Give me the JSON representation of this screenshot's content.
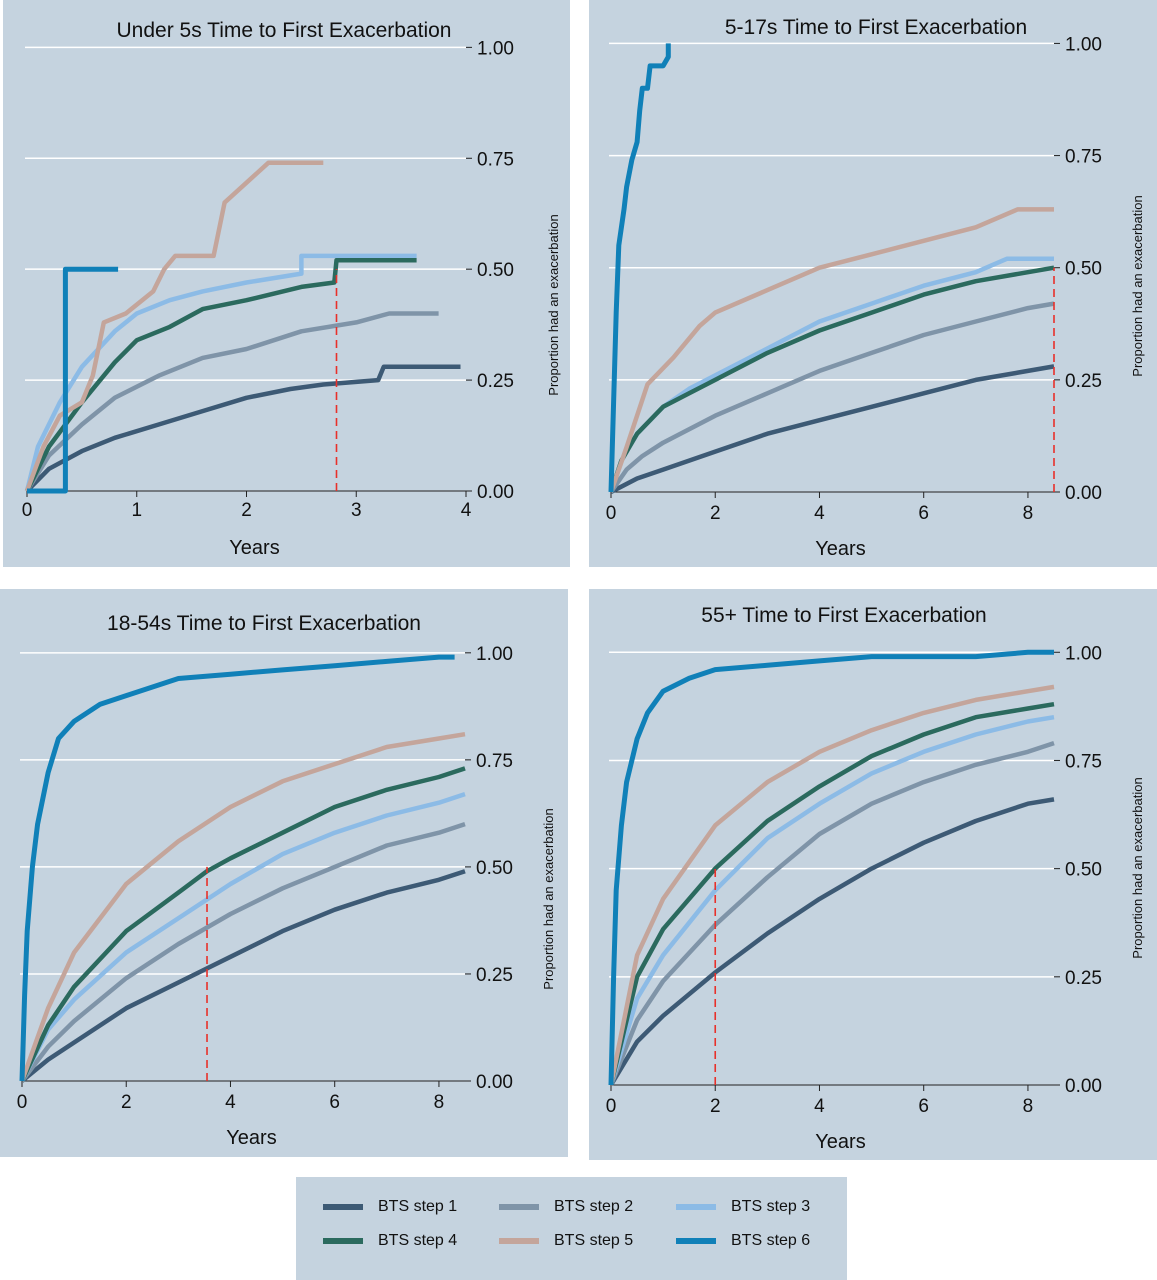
{
  "chart_data": [
    {
      "type": "line",
      "title": "Under 5s Time to First Exacerbation",
      "xlabel": "Years",
      "ylabel": "Proportion had an exacerbation",
      "xlim": [
        0,
        4
      ],
      "ylim": [
        0,
        1.1
      ],
      "xticks": [
        0,
        1,
        2,
        3,
        4
      ],
      "yticks": [
        0,
        0.25,
        0.5,
        0.75,
        1.0
      ],
      "ytick_labels": [
        "0.00",
        "0.25",
        "0.50",
        "0.75",
        "1.00"
      ],
      "grid": "horizontal",
      "median_line": {
        "x": 2.82,
        "y": 0.5
      },
      "series": [
        {
          "name": "BTS step 1",
          "x": [
            0,
            0.2,
            0.5,
            0.8,
            1.2,
            1.6,
            2.0,
            2.4,
            2.7,
            3.2,
            3.25,
            3.95
          ],
          "y": [
            0,
            0.05,
            0.09,
            0.12,
            0.15,
            0.18,
            0.21,
            0.23,
            0.24,
            0.25,
            0.28,
            0.28
          ]
        },
        {
          "name": "BTS step 2",
          "x": [
            0,
            0.2,
            0.5,
            0.8,
            1.2,
            1.6,
            2.0,
            2.5,
            3.0,
            3.3,
            3.75
          ],
          "y": [
            0,
            0.08,
            0.15,
            0.21,
            0.26,
            0.3,
            0.32,
            0.36,
            0.38,
            0.4,
            0.4
          ]
        },
        {
          "name": "BTS step 3",
          "x": [
            0,
            0.1,
            0.3,
            0.5,
            0.8,
            1.0,
            1.3,
            1.6,
            2.0,
            2.5,
            2.5,
            3.55
          ],
          "y": [
            0,
            0.1,
            0.2,
            0.28,
            0.36,
            0.4,
            0.43,
            0.45,
            0.47,
            0.49,
            0.53,
            0.53
          ]
        },
        {
          "name": "BTS step 4",
          "x": [
            0,
            0.2,
            0.5,
            0.8,
            1.0,
            1.3,
            1.6,
            2.0,
            2.5,
            2.8,
            2.82,
            3.55
          ],
          "y": [
            0,
            0.1,
            0.2,
            0.29,
            0.34,
            0.37,
            0.41,
            0.43,
            0.46,
            0.47,
            0.52,
            0.52
          ]
        },
        {
          "name": "BTS step 5",
          "x": [
            0,
            0.15,
            0.3,
            0.5,
            0.6,
            0.7,
            0.9,
            1.15,
            1.25,
            1.35,
            1.7,
            1.8,
            2.2,
            2.7
          ],
          "y": [
            0,
            0.1,
            0.17,
            0.2,
            0.26,
            0.38,
            0.4,
            0.45,
            0.5,
            0.53,
            0.53,
            0.65,
            0.74,
            0.74
          ]
        },
        {
          "name": "BTS step 6",
          "x": [
            0,
            0.35,
            0.35,
            0.83
          ],
          "y": [
            0,
            0,
            0.5,
            0.5
          ]
        }
      ]
    },
    {
      "type": "line",
      "title": "5-17s Time to First Exacerbation",
      "xlabel": "Years",
      "ylabel": "Proportion had an exacerbation",
      "xlim": [
        0,
        8.5
      ],
      "ylim": [
        0,
        1.05
      ],
      "xticks": [
        0,
        2,
        4,
        6,
        8
      ],
      "yticks": [
        0,
        0.25,
        0.5,
        0.75,
        1.0
      ],
      "ytick_labels": [
        "0.00",
        "0.25",
        "0.50",
        "0.75",
        "1.00"
      ],
      "grid": "horizontal",
      "median_line": {
        "x": 8.5,
        "y": 0.5
      },
      "series": [
        {
          "name": "BTS step 1",
          "x": [
            0,
            0.5,
            1,
            2,
            3,
            4,
            5,
            6,
            7,
            8,
            8.5
          ],
          "y": [
            0,
            0.03,
            0.05,
            0.09,
            0.13,
            0.16,
            0.19,
            0.22,
            0.25,
            0.27,
            0.28
          ]
        },
        {
          "name": "BTS step 2",
          "x": [
            0,
            0.3,
            0.6,
            1,
            2,
            3,
            4,
            5,
            6,
            7,
            8,
            8.5
          ],
          "y": [
            0,
            0.05,
            0.08,
            0.11,
            0.17,
            0.22,
            0.27,
            0.31,
            0.35,
            0.38,
            0.41,
            0.42
          ]
        },
        {
          "name": "BTS step 3",
          "x": [
            0,
            0.2,
            0.5,
            1,
            1.5,
            2,
            3,
            4,
            5,
            6,
            7,
            7.6,
            8.5
          ],
          "y": [
            0,
            0.07,
            0.13,
            0.19,
            0.23,
            0.26,
            0.32,
            0.38,
            0.42,
            0.46,
            0.49,
            0.52,
            0.52
          ]
        },
        {
          "name": "BTS step 4",
          "x": [
            0,
            0.2,
            0.5,
            1,
            1.5,
            2,
            3,
            4,
            5,
            6,
            7,
            8,
            8.5
          ],
          "y": [
            0,
            0.07,
            0.13,
            0.19,
            0.22,
            0.25,
            0.31,
            0.36,
            0.4,
            0.44,
            0.47,
            0.49,
            0.5
          ]
        },
        {
          "name": "BTS step 5",
          "x": [
            0,
            0.3,
            0.7,
            1.2,
            1.7,
            2,
            3,
            4,
            5,
            6,
            7,
            7.8,
            8.5
          ],
          "y": [
            0,
            0.1,
            0.24,
            0.3,
            0.37,
            0.4,
            0.45,
            0.5,
            0.53,
            0.56,
            0.59,
            0.63,
            0.63
          ]
        },
        {
          "name": "BTS step 6",
          "x": [
            0,
            0.05,
            0.1,
            0.15,
            0.25,
            0.3,
            0.4,
            0.5,
            0.55,
            0.6,
            0.7,
            0.75,
            0.8,
            1.0,
            1.1,
            1.1
          ],
          "y": [
            0,
            0.2,
            0.4,
            0.55,
            0.63,
            0.68,
            0.74,
            0.78,
            0.85,
            0.9,
            0.9,
            0.95,
            0.95,
            0.95,
            0.97,
            1.0
          ]
        }
      ]
    },
    {
      "type": "line",
      "title": "18-54s Time to First Exacerbation",
      "xlabel": "Years",
      "ylabel": "Proportion had an exacerbation",
      "xlim": [
        0,
        8.5
      ],
      "ylim": [
        0,
        1.1
      ],
      "xticks": [
        0,
        2,
        4,
        6,
        8
      ],
      "yticks": [
        0,
        0.25,
        0.5,
        0.75,
        1.0
      ],
      "ytick_labels": [
        "0.00",
        "0.25",
        "0.50",
        "0.75",
        "1.00"
      ],
      "grid": "horizontal",
      "median_line": {
        "x": 3.55,
        "y": 0.5
      },
      "series": [
        {
          "name": "BTS step 1",
          "x": [
            0,
            0.5,
            1,
            2,
            3,
            4,
            5,
            6,
            7,
            8,
            8.5
          ],
          "y": [
            0,
            0.05,
            0.09,
            0.17,
            0.23,
            0.29,
            0.35,
            0.4,
            0.44,
            0.47,
            0.49
          ]
        },
        {
          "name": "BTS step 2",
          "x": [
            0,
            0.5,
            1,
            2,
            3,
            4,
            5,
            6,
            7,
            8,
            8.5
          ],
          "y": [
            0,
            0.08,
            0.14,
            0.24,
            0.32,
            0.39,
            0.45,
            0.5,
            0.55,
            0.58,
            0.6
          ]
        },
        {
          "name": "BTS step 3",
          "x": [
            0,
            0.5,
            1,
            2,
            3,
            4,
            5,
            6,
            7,
            8,
            8.5
          ],
          "y": [
            0,
            0.12,
            0.19,
            0.3,
            0.38,
            0.46,
            0.53,
            0.58,
            0.62,
            0.65,
            0.67
          ]
        },
        {
          "name": "BTS step 4",
          "x": [
            0,
            0.5,
            1,
            2,
            3,
            3.55,
            4,
            5,
            6,
            7,
            8,
            8.5
          ],
          "y": [
            0,
            0.13,
            0.22,
            0.35,
            0.44,
            0.49,
            0.52,
            0.58,
            0.64,
            0.68,
            0.71,
            0.73
          ]
        },
        {
          "name": "BTS step 5",
          "x": [
            0,
            0.5,
            1,
            2,
            3,
            4,
            5,
            6,
            7,
            8,
            8.5
          ],
          "y": [
            0,
            0.17,
            0.3,
            0.46,
            0.56,
            0.64,
            0.7,
            0.74,
            0.78,
            0.8,
            0.81
          ]
        },
        {
          "name": "BTS step 6",
          "x": [
            0,
            0.05,
            0.1,
            0.2,
            0.3,
            0.5,
            0.7,
            1,
            1.5,
            2,
            3,
            4,
            5,
            6,
            7,
            8,
            8.3
          ],
          "y": [
            0,
            0.2,
            0.35,
            0.5,
            0.6,
            0.72,
            0.8,
            0.84,
            0.88,
            0.9,
            0.94,
            0.95,
            0.96,
            0.97,
            0.98,
            0.99,
            0.99
          ]
        }
      ]
    },
    {
      "type": "line",
      "title": "55+ Time to First Exacerbation",
      "xlabel": "Years",
      "ylabel": "Proportion had an exacerbation",
      "xlim": [
        0,
        8.5
      ],
      "ylim": [
        0,
        1.1
      ],
      "xticks": [
        0,
        2,
        4,
        6,
        8
      ],
      "yticks": [
        0,
        0.25,
        0.5,
        0.75,
        1.0
      ],
      "ytick_labels": [
        "0.00",
        "0.25",
        "0.50",
        "0.75",
        "1.00"
      ],
      "grid": "horizontal",
      "median_line": {
        "x": 2.0,
        "y": 0.5
      },
      "series": [
        {
          "name": "BTS step 1",
          "x": [
            0,
            0.5,
            1,
            2,
            3,
            4,
            5,
            6,
            7,
            8,
            8.5
          ],
          "y": [
            0,
            0.1,
            0.16,
            0.26,
            0.35,
            0.43,
            0.5,
            0.56,
            0.61,
            0.65,
            0.66
          ]
        },
        {
          "name": "BTS step 2",
          "x": [
            0,
            0.5,
            1,
            2,
            3,
            4,
            5,
            6,
            7,
            8,
            8.5
          ],
          "y": [
            0,
            0.15,
            0.24,
            0.37,
            0.48,
            0.58,
            0.65,
            0.7,
            0.74,
            0.77,
            0.79
          ]
        },
        {
          "name": "BTS step 3",
          "x": [
            0,
            0.5,
            1,
            2,
            3,
            4,
            5,
            6,
            7,
            8,
            8.5
          ],
          "y": [
            0,
            0.2,
            0.3,
            0.45,
            0.57,
            0.65,
            0.72,
            0.77,
            0.81,
            0.84,
            0.85
          ]
        },
        {
          "name": "BTS step 4",
          "x": [
            0,
            0.5,
            1,
            2,
            3,
            4,
            5,
            6,
            7,
            8,
            8.5
          ],
          "y": [
            0,
            0.25,
            0.36,
            0.5,
            0.61,
            0.69,
            0.76,
            0.81,
            0.85,
            0.87,
            0.88
          ]
        },
        {
          "name": "BTS step 5",
          "x": [
            0,
            0.5,
            1,
            2,
            3,
            4,
            5,
            6,
            7,
            8,
            8.5
          ],
          "y": [
            0,
            0.3,
            0.43,
            0.6,
            0.7,
            0.77,
            0.82,
            0.86,
            0.89,
            0.91,
            0.92
          ]
        },
        {
          "name": "BTS step 6",
          "x": [
            0,
            0.05,
            0.1,
            0.2,
            0.3,
            0.5,
            0.7,
            1,
            1.5,
            2,
            3,
            4,
            5,
            6,
            7,
            8,
            8.5
          ],
          "y": [
            0,
            0.25,
            0.45,
            0.6,
            0.7,
            0.8,
            0.86,
            0.91,
            0.94,
            0.96,
            0.97,
            0.98,
            0.99,
            0.99,
            0.99,
            1.0,
            1.0
          ]
        }
      ]
    }
  ],
  "series_colors": {
    "BTS step 1": "#3d5a75",
    "BTS step 2": "#7f94a8",
    "BTS step 3": "#8cbbe6",
    "BTS step 4": "#2b6a5e",
    "BTS step 5": "#c4a59b",
    "BTS step 6": "#1080b8"
  },
  "median_line_color": "#e8302a",
  "legend": {
    "items": [
      {
        "label": "BTS step 1",
        "color": "#3d5a75"
      },
      {
        "label": "BTS step 2",
        "color": "#7f94a8"
      },
      {
        "label": "BTS step 3",
        "color": "#8cbbe6"
      },
      {
        "label": "BTS step 4",
        "color": "#2b6a5e"
      },
      {
        "label": "BTS step 5",
        "color": "#c4a59b"
      },
      {
        "label": "BTS step 6",
        "color": "#1080b8"
      }
    ]
  }
}
